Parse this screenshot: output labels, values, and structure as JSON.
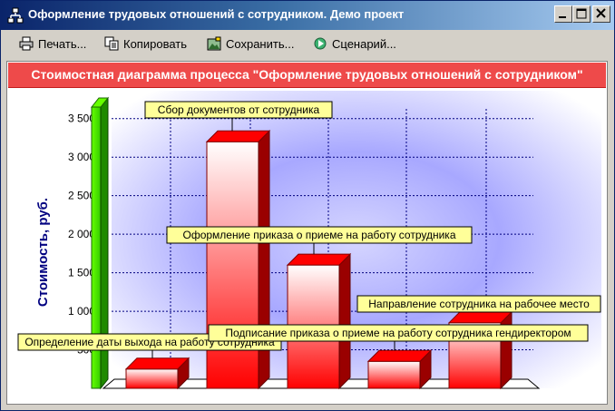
{
  "window": {
    "title": "Оформление трудовых отношений с сотрудником. Демо проект",
    "icon": "process-tree-icon"
  },
  "toolbar": {
    "print_label": "Печать...",
    "copy_label": "Копировать",
    "save_label": "Сохранить...",
    "scenario_label": "Сценарий..."
  },
  "chart_data": {
    "type": "bar",
    "title": "Стоимостная диаграмма процесса \"Оформление трудовых отношений с сотрудником\"",
    "ylabel": "Стоимость, руб.",
    "xlabel": "",
    "ylim": [
      0,
      3650
    ],
    "yticks": [
      500,
      1000,
      1500,
      2000,
      2500,
      3000,
      3500
    ],
    "ytick_labels": [
      "500",
      "1 000",
      "1 500",
      "2 000",
      "2 500",
      "3 000",
      "3 500"
    ],
    "grid": true,
    "total_bar": {
      "value": 3650,
      "color": "#33cc00"
    },
    "categories": [
      "Определение даты выхода на работу сотрудника",
      "Сбор документов от сотрудника",
      "Оформление приказа о приеме на работу сотрудника",
      "Подписание приказа о приеме на работу сотрудника гендиректором",
      "Направление сотрудника на рабочее место"
    ],
    "values": [
      250,
      3200,
      1600,
      350,
      850
    ],
    "bar_color": "#ff0000",
    "label_color": "#ffff99"
  }
}
